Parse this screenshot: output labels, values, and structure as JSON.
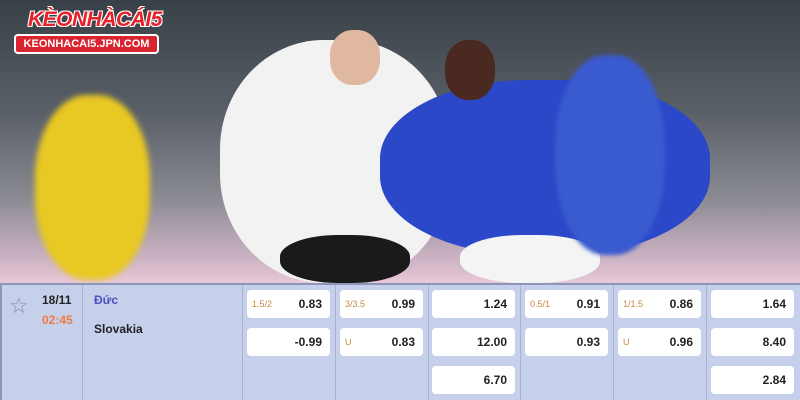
{
  "logo": {
    "title": "KÈONHÀCÁI5",
    "url": "KEONHACAI5.JPN.COM"
  },
  "match": {
    "date": "18/11",
    "time": "02:45",
    "home": "Đức",
    "away": "Slovakia",
    "favorite_icon": "star-outline-icon"
  },
  "odds": [
    {
      "rows": [
        {
          "label": "1.5/2",
          "value": "0.83"
        },
        {
          "label": "",
          "value": "-0.99"
        }
      ]
    },
    {
      "rows": [
        {
          "label": "3/3.5",
          "value": "0.99"
        },
        {
          "label": "U",
          "value": "0.83"
        }
      ]
    },
    {
      "rows": [
        {
          "label": "",
          "value": "1.24"
        },
        {
          "label": "",
          "value": "12.00"
        },
        {
          "label": "",
          "value": "6.70"
        }
      ]
    },
    {
      "rows": [
        {
          "label": "0.5/1",
          "value": "0.91"
        },
        {
          "label": "",
          "value": "0.93"
        }
      ]
    },
    {
      "rows": [
        {
          "label": "1/1.5",
          "value": "0.86"
        },
        {
          "label": "U",
          "value": "0.96"
        }
      ]
    },
    {
      "rows": [
        {
          "label": "",
          "value": "1.64"
        },
        {
          "label": "",
          "value": "8.40"
        },
        {
          "label": "",
          "value": "2.84"
        }
      ]
    }
  ],
  "colors": {
    "table_bg": "#c6d0ea",
    "home_team": "#4a50c0",
    "time": "#f07a40",
    "logo_red": "#e8202a"
  }
}
